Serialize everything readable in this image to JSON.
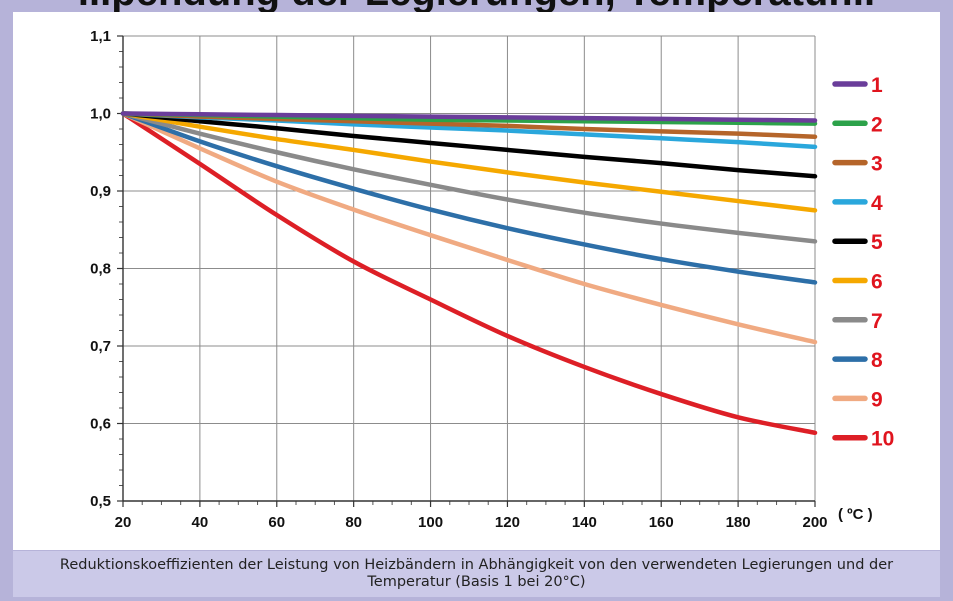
{
  "title_fragment": "...pendung der Legierungen, Temperatur...",
  "caption": "Reduktionskoeffizienten der Leistung von Heizbändern in Abhängigkeit von den verwendeten Legierungen und der Temperatur (Basis 1 bei 20°C)",
  "chart_data": {
    "type": "line",
    "title": "",
    "xlabel": "( ºC )",
    "ylabel": "",
    "xlim": [
      20,
      200
    ],
    "ylim": [
      0.5,
      1.1
    ],
    "grid": true,
    "legend_position": "right",
    "x_ticks": [
      "20",
      "40",
      "60",
      "80",
      "100",
      "120",
      "140",
      "160",
      "180",
      "200"
    ],
    "y_ticks": [
      "0,5",
      "0,6",
      "0,7",
      "0,8",
      "0,9",
      "1,0",
      "1,1"
    ],
    "x": [
      20,
      40,
      60,
      80,
      100,
      120,
      140,
      160,
      180,
      200
    ],
    "series": [
      {
        "name": "1",
        "color": "#6a3d9a",
        "values": [
          1.0,
          0.999,
          0.998,
          0.997,
          0.996,
          0.995,
          0.994,
          0.993,
          0.992,
          0.991
        ]
      },
      {
        "name": "2",
        "color": "#2ca24a",
        "values": [
          1.0,
          0.998,
          0.996,
          0.994,
          0.992,
          0.991,
          0.99,
          0.989,
          0.988,
          0.987
        ]
      },
      {
        "name": "3",
        "color": "#b5652a",
        "values": [
          1.0,
          0.996,
          0.993,
          0.99,
          0.987,
          0.984,
          0.98,
          0.977,
          0.974,
          0.97
        ]
      },
      {
        "name": "4",
        "color": "#2aa7dc",
        "values": [
          1.0,
          0.995,
          0.991,
          0.986,
          0.982,
          0.978,
          0.973,
          0.968,
          0.963,
          0.957
        ]
      },
      {
        "name": "5",
        "color": "#000000",
        "values": [
          1.0,
          0.99,
          0.981,
          0.971,
          0.962,
          0.953,
          0.944,
          0.936,
          0.927,
          0.919
        ]
      },
      {
        "name": "6",
        "color": "#f5a800",
        "values": [
          1.0,
          0.983,
          0.967,
          0.953,
          0.938,
          0.924,
          0.911,
          0.899,
          0.887,
          0.875
        ]
      },
      {
        "name": "7",
        "color": "#8a8a8a",
        "values": [
          1.0,
          0.974,
          0.95,
          0.928,
          0.908,
          0.889,
          0.872,
          0.858,
          0.846,
          0.835
        ]
      },
      {
        "name": "8",
        "color": "#2d6fa8",
        "values": [
          1.0,
          0.964,
          0.932,
          0.903,
          0.876,
          0.852,
          0.831,
          0.812,
          0.796,
          0.782
        ]
      },
      {
        "name": "9",
        "color": "#f0aa82",
        "values": [
          1.0,
          0.955,
          0.912,
          0.876,
          0.843,
          0.811,
          0.78,
          0.753,
          0.728,
          0.705
        ]
      },
      {
        "name": "10",
        "color": "#dd1f26",
        "values": [
          1.0,
          0.935,
          0.869,
          0.809,
          0.76,
          0.713,
          0.673,
          0.638,
          0.608,
          0.588
        ]
      }
    ]
  }
}
